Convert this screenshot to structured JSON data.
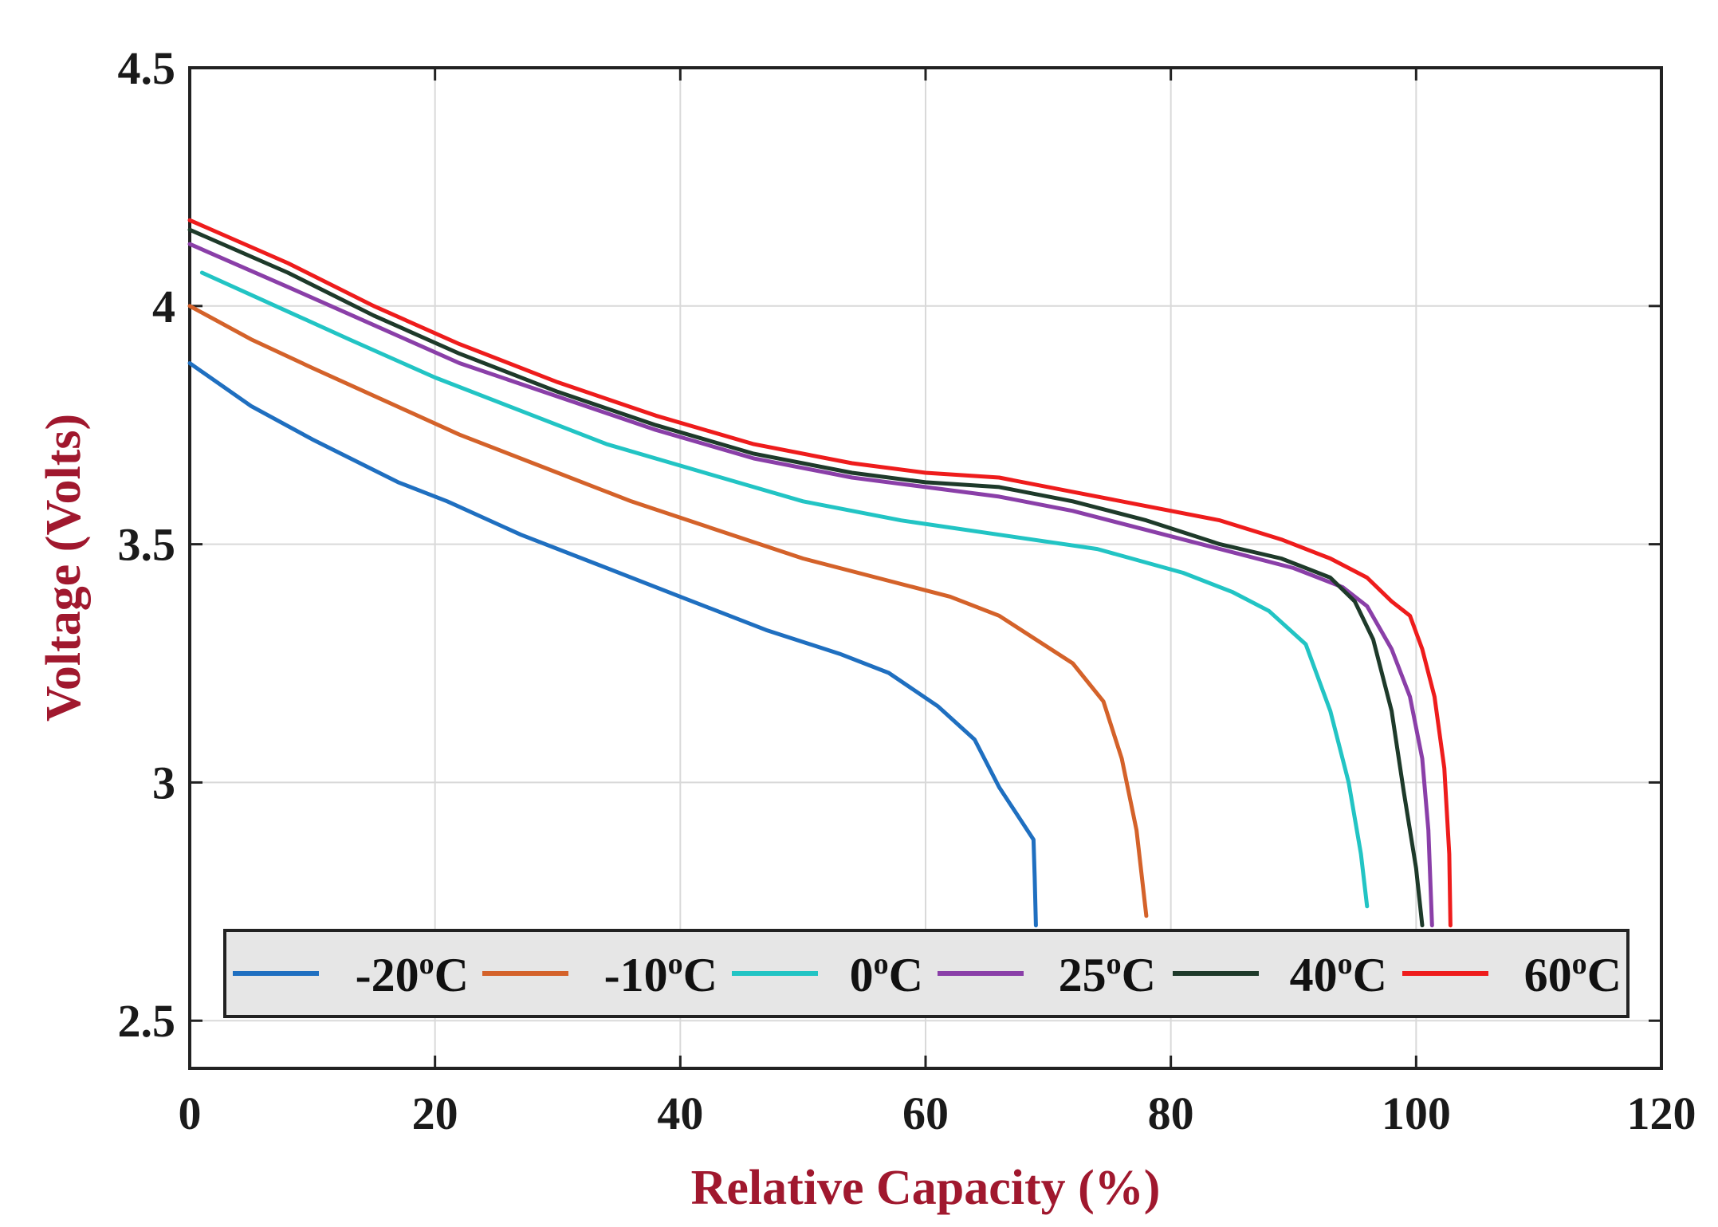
{
  "chart_data": {
    "type": "line",
    "xlabel": "Relative Capacity (%)",
    "ylabel": "Voltage (Volts)",
    "xlim": [
      0,
      120
    ],
    "ylim": [
      2.4,
      4.5
    ],
    "xticks": [
      0,
      20,
      40,
      60,
      80,
      100,
      120
    ],
    "yticks": [
      2.5,
      3,
      3.5,
      4,
      4.5
    ],
    "xtick_labels": [
      "0",
      "20",
      "40",
      "60",
      "80",
      "100",
      "120"
    ],
    "ytick_labels": [
      "2.5",
      "3",
      "3.5",
      "4",
      "4.5"
    ],
    "grid": true,
    "legend_position": "bottom, single row",
    "label_color": "#a0182e",
    "series": [
      {
        "name": "-20",
        "unit_sup": "o",
        "unit": "C",
        "color": "#1f6fc0",
        "x": [
          0,
          5,
          10,
          17,
          21,
          27,
          33,
          40,
          47,
          53,
          57,
          61,
          64,
          66,
          68.8,
          68.9,
          69
        ],
        "y": [
          3.88,
          3.79,
          3.72,
          3.63,
          3.59,
          3.52,
          3.46,
          3.39,
          3.32,
          3.27,
          3.23,
          3.16,
          3.09,
          2.99,
          2.88,
          2.8,
          2.7
        ]
      },
      {
        "name": "-10",
        "unit_sup": "o",
        "unit": "C",
        "color": "#d4622a",
        "x": [
          0,
          5,
          10,
          16,
          22,
          29,
          36,
          43,
          50,
          56,
          62,
          66,
          69,
          72,
          74.5,
          76,
          77.2,
          78
        ],
        "y": [
          4.0,
          3.93,
          3.87,
          3.8,
          3.73,
          3.66,
          3.59,
          3.53,
          3.47,
          3.43,
          3.39,
          3.35,
          3.3,
          3.25,
          3.17,
          3.05,
          2.9,
          2.72
        ]
      },
      {
        "name": "0",
        "unit_sup": "o",
        "unit": "C",
        "color": "#22c4c4",
        "x": [
          1,
          7,
          13,
          20,
          27,
          34,
          42,
          50,
          58,
          66,
          74,
          81,
          85,
          88,
          91,
          93,
          94.5,
          95.5,
          96
        ],
        "y": [
          4.07,
          4.0,
          3.93,
          3.85,
          3.78,
          3.71,
          3.65,
          3.59,
          3.55,
          3.52,
          3.49,
          3.44,
          3.4,
          3.36,
          3.29,
          3.15,
          3.0,
          2.85,
          2.74
        ]
      },
      {
        "name": "25",
        "unit_sup": "o",
        "unit": "C",
        "color": "#8a3fa8",
        "x": [
          0,
          8,
          15,
          22,
          30,
          38,
          46,
          54,
          60,
          66,
          72,
          78,
          84,
          90,
          94,
          96,
          98,
          99.5,
          100.5,
          101,
          101.3
        ],
        "y": [
          4.13,
          4.04,
          3.96,
          3.88,
          3.81,
          3.74,
          3.68,
          3.64,
          3.62,
          3.6,
          3.57,
          3.53,
          3.49,
          3.45,
          3.41,
          3.37,
          3.28,
          3.18,
          3.05,
          2.9,
          2.7
        ]
      },
      {
        "name": "40",
        "unit_sup": "o",
        "unit": "C",
        "color": "#1e3a2a",
        "x": [
          0,
          8,
          15,
          22,
          30,
          38,
          46,
          54,
          60,
          66,
          72,
          78,
          84,
          89,
          93,
          95,
          96.5,
          98,
          99,
          100,
          100.5
        ],
        "y": [
          4.16,
          4.07,
          3.98,
          3.9,
          3.82,
          3.75,
          3.69,
          3.65,
          3.63,
          3.62,
          3.59,
          3.55,
          3.5,
          3.47,
          3.43,
          3.38,
          3.3,
          3.15,
          2.98,
          2.82,
          2.7
        ]
      },
      {
        "name": "60",
        "unit_sup": "o",
        "unit": "C",
        "color": "#ee1c1c",
        "x": [
          0,
          8,
          15,
          22,
          30,
          38,
          46,
          54,
          60,
          66,
          72,
          78,
          84,
          89,
          93,
          96,
          98,
          99.5,
          100.5,
          101.5,
          102.3,
          102.7,
          102.8
        ],
        "y": [
          4.18,
          4.09,
          4.0,
          3.92,
          3.84,
          3.77,
          3.71,
          3.67,
          3.65,
          3.64,
          3.61,
          3.58,
          3.55,
          3.51,
          3.47,
          3.43,
          3.38,
          3.35,
          3.28,
          3.18,
          3.03,
          2.85,
          2.7
        ]
      }
    ]
  }
}
